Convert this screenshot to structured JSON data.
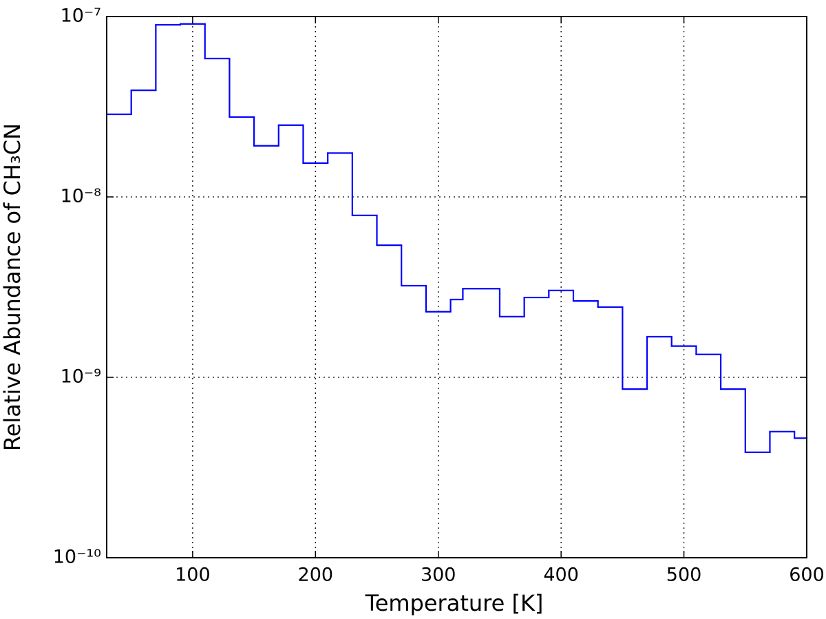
{
  "chart_data": {
    "type": "line",
    "step": "post",
    "xlabel": "Temperature [K]",
    "ylabel": "Relative Abundance of CH₃CN",
    "x": [
      30,
      50,
      70,
      90,
      110,
      130,
      150,
      170,
      190,
      210,
      230,
      250,
      270,
      290,
      310,
      320,
      350,
      370,
      390,
      410,
      430,
      450,
      470,
      490,
      510,
      530,
      550,
      570,
      590
    ],
    "values": [
      2.87e-08,
      3.9e-08,
      9e-08,
      9.1e-08,
      5.85e-08,
      2.77e-08,
      1.92e-08,
      2.5e-08,
      1.54e-08,
      1.75e-08,
      7.9e-09,
      5.4e-09,
      3.22e-09,
      2.31e-09,
      2.7e-09,
      3.1e-09,
      2.17e-09,
      2.77e-09,
      3.03e-09,
      2.65e-09,
      2.45e-09,
      8.6e-10,
      1.68e-09,
      1.49e-09,
      1.34e-09,
      8.6e-10,
      3.84e-10,
      5e-10,
      4.6e-10
    ],
    "color": "#0000ff",
    "xlim": [
      30,
      600
    ],
    "xticks": [
      100,
      200,
      300,
      400,
      500,
      600
    ],
    "ylim": [
      1e-10,
      1e-07
    ],
    "yscale": "log",
    "yticks": [
      {
        "value": 1e-10,
        "label": "10⁻¹⁰"
      },
      {
        "value": 1e-09,
        "label": "10⁻⁹"
      },
      {
        "value": 1e-08,
        "label": "10⁻⁸"
      },
      {
        "value": 1e-07,
        "label": "10⁻⁷"
      }
    ],
    "grid": true
  }
}
